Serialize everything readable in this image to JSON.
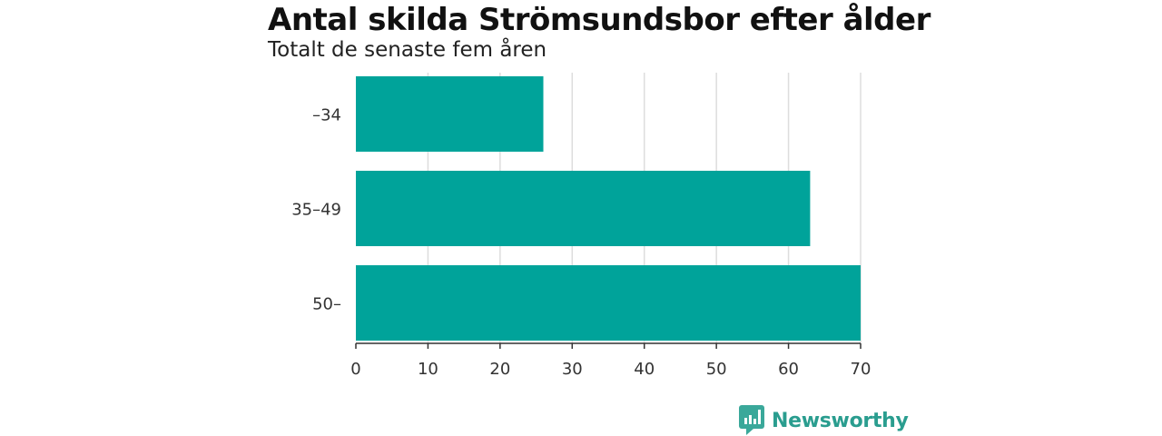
{
  "header": {
    "title": "Antal skilda Strömsundsbor efter ålder",
    "subtitle": "Totalt de senaste fem åren"
  },
  "brand": {
    "name": "Newsworthy",
    "icon": "bar-chart-speech-bubble-icon",
    "color": "#3aa89a"
  },
  "chart_data": {
    "type": "bar",
    "orientation": "horizontal",
    "categories": [
      "–34",
      "35–49",
      "50–"
    ],
    "values": [
      26,
      63,
      70
    ],
    "xlim": [
      0,
      70
    ],
    "xticks": [
      0,
      10,
      20,
      30,
      40,
      50,
      60,
      70
    ],
    "grid": true,
    "bar_color": "#00a39a"
  }
}
